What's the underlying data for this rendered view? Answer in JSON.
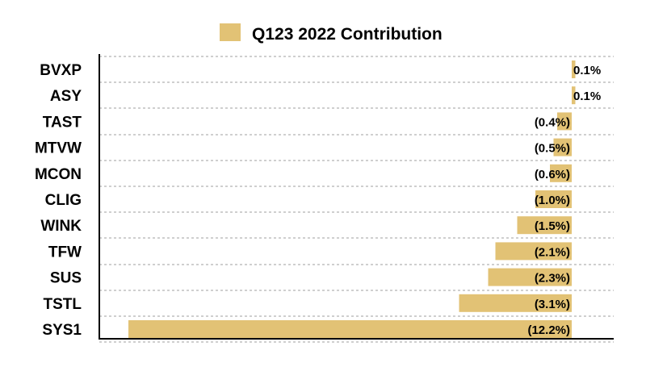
{
  "chart_data": {
    "type": "bar",
    "orientation": "horizontal",
    "categories": [
      "BVXP",
      "ASY",
      "TAST",
      "MTVW",
      "MCON",
      "CLIG",
      "WINK",
      "TFW",
      "SUS",
      "TSTL",
      "SYS1"
    ],
    "series": [
      {
        "name": "Q123 2022 Contribution",
        "values": [
          0.1,
          0.1,
          -0.4,
          -0.5,
          -0.6,
          -1.0,
          -1.5,
          -2.1,
          -2.3,
          -3.1,
          -12.2
        ],
        "labels": [
          "0.1%",
          "0.1%",
          "(0.4%)",
          "(0.5%)",
          "(0.6%)",
          "(1.0%)",
          "(1.5%)",
          "(2.1%)",
          "(2.3%)",
          "(3.1%)",
          "(12.2%)"
        ]
      }
    ],
    "legend_position": "top",
    "grid": "horizontal dashed",
    "bar_color": "#E2C275"
  }
}
